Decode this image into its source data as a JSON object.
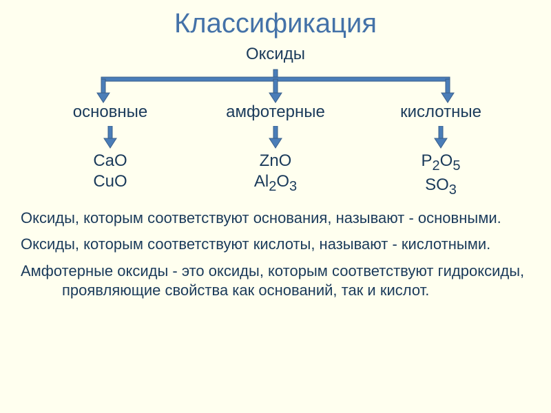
{
  "title": "Классификация",
  "root_label": "Оксиды",
  "colors": {
    "background": "#ffffef",
    "title": "#4472a8",
    "text": "#1a3a5a",
    "arrow_fill": "#4a7db8",
    "arrow_stroke": "#3a5f8a"
  },
  "branches": [
    {
      "label": "основные",
      "examples": [
        "CaO",
        "CuO"
      ]
    },
    {
      "label": "амфотерные",
      "examples": [
        "ZnO",
        "Al2O3"
      ]
    },
    {
      "label": "кислотные",
      "examples": [
        "P2O5",
        "SO3"
      ]
    }
  ],
  "definitions": [
    "Оксиды, которым соответствуют основания, называют - основными.",
    "Оксиды, которым соответствуют кислоты, называют - кислотными.",
    "Амфотерные оксиды - это оксиды, которым соответствуют гидроксиды, проявляющие свойства как оснований, так и кислот."
  ],
  "connector": {
    "stroke_width": 6,
    "arrow_head_w": 18,
    "arrow_head_h": 14,
    "down_arrow_shaft_h": 18
  }
}
